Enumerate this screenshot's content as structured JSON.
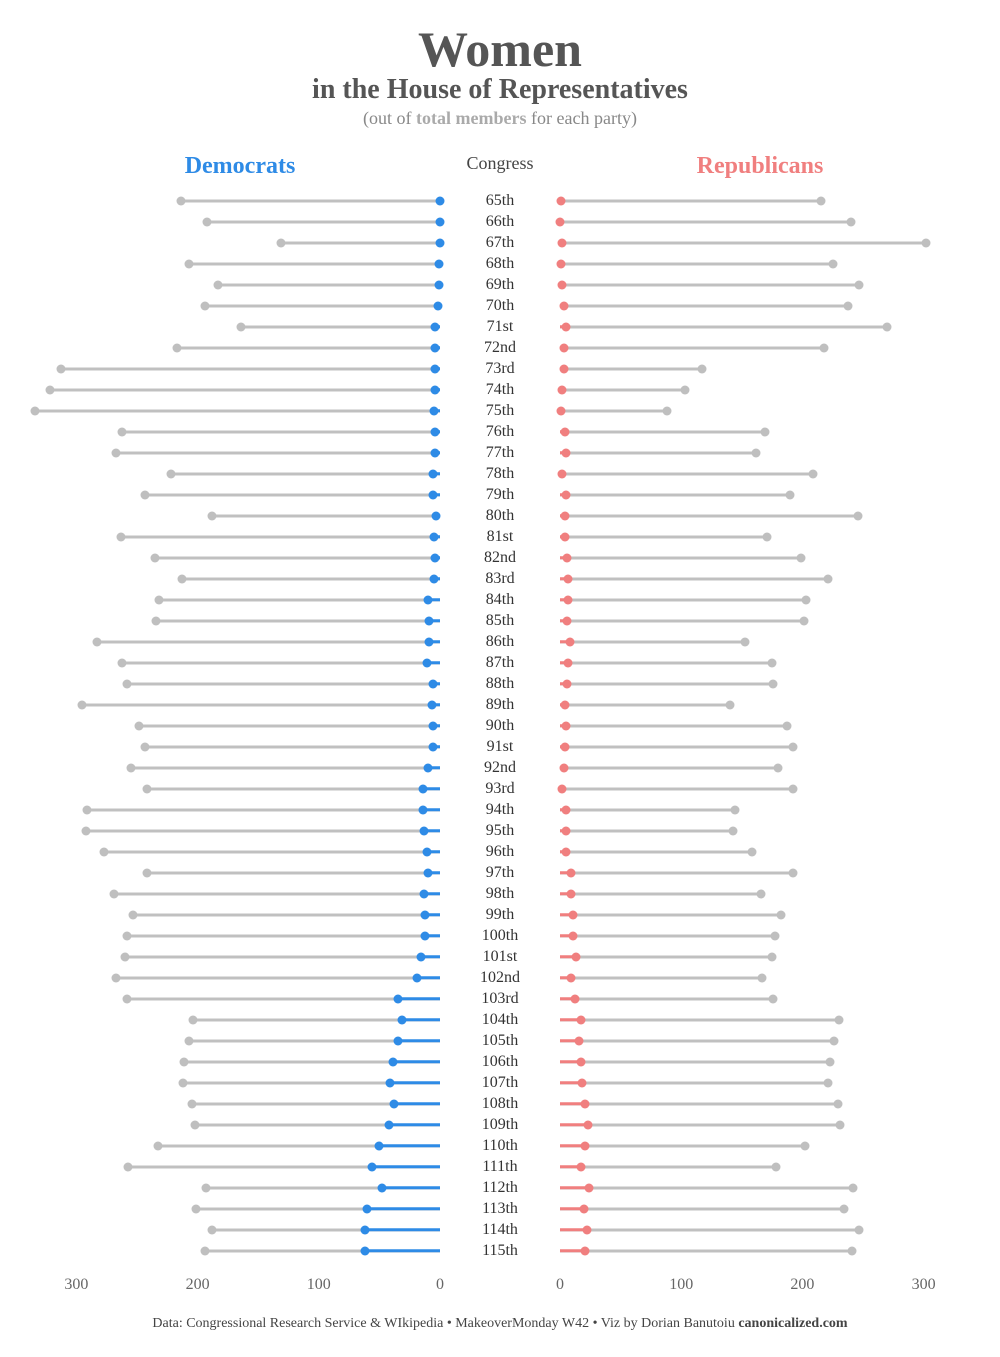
{
  "title": {
    "main": "Women",
    "sub": "in the House of Representatives",
    "paren_prefix": "(out of ",
    "paren_em": "total members",
    "paren_suffix": " for each party)"
  },
  "headers": {
    "democrats": "Democrats",
    "congress": "Congress",
    "republicans": "Republicans"
  },
  "colors": {
    "dem": "#2e8be6",
    "rep": "#f07f7f",
    "total_line": "#c0c0c0",
    "total_dot": "#bfbfbf",
    "text": "#333333",
    "title": "#555555",
    "bg": "#ffffff"
  },
  "scale": {
    "max": 330,
    "ticks": [
      0,
      100,
      200,
      300
    ]
  },
  "rows": [
    {
      "label": "65th",
      "dem_total": 214,
      "dem_women": 0,
      "rep_total": 215,
      "rep_women": 1
    },
    {
      "label": "66th",
      "dem_total": 192,
      "dem_women": 0,
      "rep_total": 240,
      "rep_women": 0
    },
    {
      "label": "67th",
      "dem_total": 131,
      "dem_women": 0,
      "rep_total": 302,
      "rep_women": 2
    },
    {
      "label": "68th",
      "dem_total": 207,
      "dem_women": 1,
      "rep_total": 225,
      "rep_women": 1
    },
    {
      "label": "69th",
      "dem_total": 183,
      "dem_women": 1,
      "rep_total": 247,
      "rep_women": 2
    },
    {
      "label": "70th",
      "dem_total": 194,
      "dem_women": 2,
      "rep_total": 238,
      "rep_women": 3
    },
    {
      "label": "71st",
      "dem_total": 164,
      "dem_women": 4,
      "rep_total": 270,
      "rep_women": 5
    },
    {
      "label": "72nd",
      "dem_total": 217,
      "dem_women": 4,
      "rep_total": 218,
      "rep_women": 3
    },
    {
      "label": "73rd",
      "dem_total": 313,
      "dem_women": 4,
      "rep_total": 117,
      "rep_women": 3
    },
    {
      "label": "74th",
      "dem_total": 322,
      "dem_women": 4,
      "rep_total": 103,
      "rep_women": 2
    },
    {
      "label": "75th",
      "dem_total": 334,
      "dem_women": 5,
      "rep_total": 88,
      "rep_women": 1
    },
    {
      "label": "76th",
      "dem_total": 262,
      "dem_women": 4,
      "rep_total": 169,
      "rep_women": 4
    },
    {
      "label": "77th",
      "dem_total": 267,
      "dem_women": 4,
      "rep_total": 162,
      "rep_women": 5
    },
    {
      "label": "78th",
      "dem_total": 222,
      "dem_women": 6,
      "rep_total": 209,
      "rep_women": 2
    },
    {
      "label": "79th",
      "dem_total": 243,
      "dem_women": 6,
      "rep_total": 190,
      "rep_women": 5
    },
    {
      "label": "80th",
      "dem_total": 188,
      "dem_women": 3,
      "rep_total": 246,
      "rep_women": 4
    },
    {
      "label": "81st",
      "dem_total": 263,
      "dem_women": 5,
      "rep_total": 171,
      "rep_women": 4
    },
    {
      "label": "82nd",
      "dem_total": 235,
      "dem_women": 4,
      "rep_total": 199,
      "rep_women": 6
    },
    {
      "label": "83rd",
      "dem_total": 213,
      "dem_women": 5,
      "rep_total": 221,
      "rep_women": 7
    },
    {
      "label": "84th",
      "dem_total": 232,
      "dem_women": 10,
      "rep_total": 203,
      "rep_women": 7
    },
    {
      "label": "85th",
      "dem_total": 234,
      "dem_women": 9,
      "rep_total": 201,
      "rep_women": 6
    },
    {
      "label": "86th",
      "dem_total": 283,
      "dem_women": 9,
      "rep_total": 153,
      "rep_women": 8
    },
    {
      "label": "87th",
      "dem_total": 262,
      "dem_women": 11,
      "rep_total": 175,
      "rep_women": 7
    },
    {
      "label": "88th",
      "dem_total": 258,
      "dem_women": 6,
      "rep_total": 176,
      "rep_women": 6
    },
    {
      "label": "89th",
      "dem_total": 295,
      "dem_women": 7,
      "rep_total": 140,
      "rep_women": 4
    },
    {
      "label": "90th",
      "dem_total": 248,
      "dem_women": 6,
      "rep_total": 187,
      "rep_women": 5
    },
    {
      "label": "91st",
      "dem_total": 243,
      "dem_women": 6,
      "rep_total": 192,
      "rep_women": 4
    },
    {
      "label": "92nd",
      "dem_total": 255,
      "dem_women": 10,
      "rep_total": 180,
      "rep_women": 3
    },
    {
      "label": "93rd",
      "dem_total": 242,
      "dem_women": 14,
      "rep_total": 192,
      "rep_women": 2
    },
    {
      "label": "94th",
      "dem_total": 291,
      "dem_women": 14,
      "rep_total": 144,
      "rep_women": 5
    },
    {
      "label": "95th",
      "dem_total": 292,
      "dem_women": 13,
      "rep_total": 143,
      "rep_women": 5
    },
    {
      "label": "96th",
      "dem_total": 277,
      "dem_women": 11,
      "rep_total": 158,
      "rep_women": 5
    },
    {
      "label": "97th",
      "dem_total": 242,
      "dem_women": 10,
      "rep_total": 192,
      "rep_women": 9
    },
    {
      "label": "98th",
      "dem_total": 269,
      "dem_women": 13,
      "rep_total": 166,
      "rep_women": 9
    },
    {
      "label": "99th",
      "dem_total": 253,
      "dem_women": 12,
      "rep_total": 182,
      "rep_women": 11
    },
    {
      "label": "100th",
      "dem_total": 258,
      "dem_women": 12,
      "rep_total": 177,
      "rep_women": 11
    },
    {
      "label": "101st",
      "dem_total": 260,
      "dem_women": 16,
      "rep_total": 175,
      "rep_women": 13
    },
    {
      "label": "102nd",
      "dem_total": 267,
      "dem_women": 19,
      "rep_total": 167,
      "rep_women": 9
    },
    {
      "label": "103rd",
      "dem_total": 258,
      "dem_women": 35,
      "rep_total": 176,
      "rep_women": 12
    },
    {
      "label": "104th",
      "dem_total": 204,
      "dem_women": 31,
      "rep_total": 230,
      "rep_women": 17
    },
    {
      "label": "105th",
      "dem_total": 207,
      "dem_women": 35,
      "rep_total": 226,
      "rep_women": 16
    },
    {
      "label": "106th",
      "dem_total": 211,
      "dem_women": 39,
      "rep_total": 223,
      "rep_women": 17
    },
    {
      "label": "107th",
      "dem_total": 212,
      "dem_women": 41,
      "rep_total": 221,
      "rep_women": 18
    },
    {
      "label": "108th",
      "dem_total": 205,
      "dem_women": 38,
      "rep_total": 229,
      "rep_women": 21
    },
    {
      "label": "109th",
      "dem_total": 202,
      "dem_women": 42,
      "rep_total": 231,
      "rep_women": 23
    },
    {
      "label": "110th",
      "dem_total": 233,
      "dem_women": 50,
      "rep_total": 202,
      "rep_women": 21
    },
    {
      "label": "111th",
      "dem_total": 257,
      "dem_women": 56,
      "rep_total": 178,
      "rep_women": 17
    },
    {
      "label": "112th",
      "dem_total": 193,
      "dem_women": 48,
      "rep_total": 242,
      "rep_women": 24
    },
    {
      "label": "113th",
      "dem_total": 201,
      "dem_women": 60,
      "rep_total": 234,
      "rep_women": 20
    },
    {
      "label": "114th",
      "dem_total": 188,
      "dem_women": 62,
      "rep_total": 247,
      "rep_women": 22
    },
    {
      "label": "115th",
      "dem_total": 194,
      "dem_women": 62,
      "rep_total": 241,
      "rep_women": 21
    }
  ],
  "footer": {
    "text_prefix": "Data: Congressional Research Service & WIkipedia • MakeoverMonday W42 • Viz by Dorian Banutoiu ",
    "text_bold": "canonicalized.com"
  }
}
